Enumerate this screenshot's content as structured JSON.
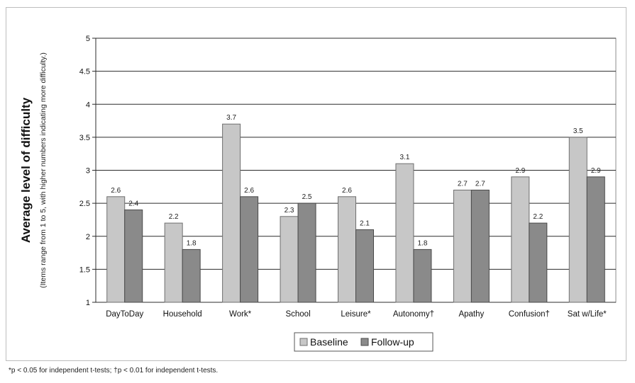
{
  "chart_data": {
    "type": "bar",
    "title": "",
    "ylabel": "Average level of difficulty",
    "ylabel_sub": "(Items range from 1 to 5, with higher numbers indicating more difficulty.)",
    "xlabel": "",
    "ylim": [
      1,
      5
    ],
    "yticks": [
      "1",
      "1.5",
      "2",
      "2.5",
      "3",
      "3.5",
      "4",
      "4.5",
      "5"
    ],
    "categories": [
      "DayToDay",
      "Household",
      "Work*",
      "School",
      "Leisure*",
      "Autonomy†",
      "Apathy",
      "Confusion†",
      "Sat w/Life*"
    ],
    "series": [
      {
        "name": "Baseline",
        "values": [
          2.6,
          2.2,
          3.7,
          2.3,
          2.6,
          3.1,
          2.7,
          2.9,
          3.5
        ],
        "labels": [
          "2.6",
          "2.2",
          "3.7",
          "2.3",
          "2.6",
          "3.1",
          "2.7",
          "2.9",
          "3.5"
        ],
        "color": "#c7c7c7"
      },
      {
        "name": "Follow-up",
        "values": [
          2.4,
          1.8,
          2.6,
          2.5,
          2.1,
          1.8,
          2.7,
          2.2,
          2.9
        ],
        "labels": [
          "2.4",
          "1.8",
          "2.6",
          "2.5",
          "2.1",
          "1.8",
          "2.7",
          "2.2",
          "2.9"
        ],
        "color": "#8a8a8a"
      }
    ],
    "grid": true,
    "legend_position": "bottom-center"
  },
  "footnote": "*p < 0.05 for independent t-tests; †p < 0.01 for independent t-tests."
}
